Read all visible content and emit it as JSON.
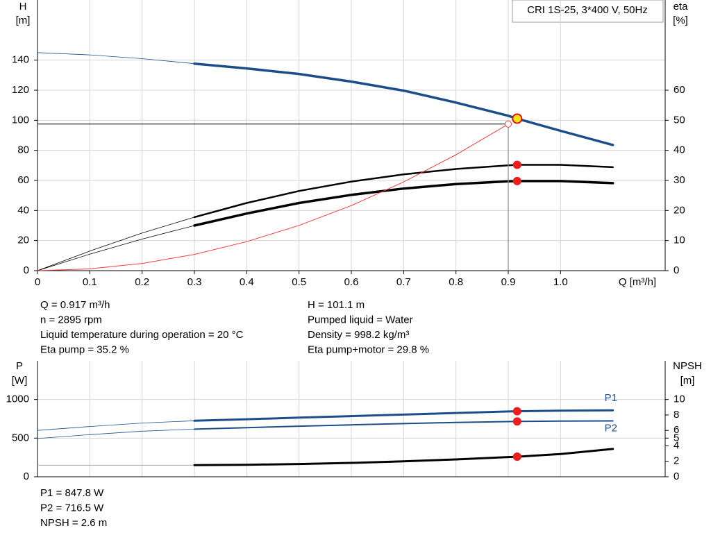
{
  "chart_data": [
    {
      "type": "line",
      "title": "CRI 1S-25, 3*400 V, 50Hz",
      "xlabel": "Q [m³/h]",
      "ylabel": [
        "H",
        "[m]"
      ],
      "y2label": [
        "eta",
        "[%]"
      ],
      "x": [
        0,
        0.1,
        0.2,
        0.3,
        0.4,
        0.5,
        0.6,
        0.7,
        0.8,
        0.9,
        0.917,
        1.0,
        1.1
      ],
      "xlim": [
        0,
        1.2
      ],
      "xticks": [
        0,
        0.1,
        0.2,
        0.3,
        0.4,
        0.5,
        0.6,
        0.7,
        0.8,
        0.9,
        {
          "value": 1.0,
          "label": "1.0"
        }
      ],
      "ylim": [
        0,
        180
      ],
      "yticks": [
        0,
        20,
        40,
        60,
        80,
        100,
        120,
        140
      ],
      "y2lim": [
        0,
        90
      ],
      "y2ticks": [
        0,
        10,
        20,
        30,
        40,
        50,
        60
      ],
      "grid": true,
      "operating_range": [
        0.3,
        1.1
      ],
      "duty_point": {
        "x": 0.917,
        "y": 101.1,
        "color": "#f5e31a"
      },
      "series": [
        {
          "color": "#1a4d89",
          "width": 3.5,
          "values": [
            145,
            143.5,
            141,
            137.7,
            134.5,
            130.8,
            125.7,
            119.7,
            111.8,
            103,
            101.1,
            93,
            83.6
          ]
        },
        {
          "color": "#000000",
          "width": 2.5,
          "axis": "y2",
          "point_color": "#ee1c1c",
          "values": [
            0,
            6.5,
            12.5,
            17.8,
            22.5,
            26.5,
            29.6,
            32.0,
            33.8,
            35.0,
            35.2,
            35.2,
            34.4
          ]
        },
        {
          "color": "#000000",
          "width": 3.5,
          "axis": "y2",
          "point_color": "#ee1c1c",
          "values": [
            0,
            5.5,
            10.5,
            15.0,
            19.0,
            22.5,
            25.2,
            27.3,
            28.8,
            29.7,
            29.8,
            29.8,
            29.1
          ]
        },
        {
          "kind": "system",
          "color": "#ee3b3b",
          "x": [
            0,
            0.1,
            0.2,
            0.3,
            0.4,
            0.5,
            0.6,
            0.7,
            0.8,
            0.9
          ],
          "values": [
            0,
            1.2,
            4.8,
            10.8,
            19.3,
            30.1,
            43.3,
            59.0,
            77.1,
            97.5
          ]
        }
      ]
    },
    {
      "type": "line",
      "ylabel": [
        "P",
        "[W]"
      ],
      "y2label": [
        "NPSH",
        "[m]"
      ],
      "x": [
        0,
        0.1,
        0.2,
        0.3,
        0.4,
        0.5,
        0.6,
        0.7,
        0.8,
        0.9,
        0.917,
        1.0,
        1.1
      ],
      "xlim": [
        0,
        1.2
      ],
      "ylim": [
        0,
        1500
      ],
      "yticks": [
        0,
        500,
        1000
      ],
      "y2lim": [
        0,
        15
      ],
      "y2ticks": [
        0,
        2,
        4,
        5,
        6,
        8,
        10
      ],
      "grid": true,
      "operating_range": [
        0.3,
        1.1
      ],
      "series": [
        {
          "name": "P1",
          "color": "#1a4d89",
          "width": 3,
          "point_color": "#ee1c1c",
          "values": [
            600,
            650,
            695,
            725,
            745,
            765,
            785,
            805,
            825,
            845,
            847.8,
            855,
            860
          ]
        },
        {
          "name": "P2",
          "color": "#1a4d89",
          "width": 2,
          "point_color": "#ee1c1c",
          "values": [
            495,
            545,
            590,
            616,
            635,
            655,
            672,
            688,
            703,
            714,
            716.5,
            720,
            723
          ]
        },
        {
          "color": "#000000",
          "thin_color": "#999999",
          "width": 3,
          "axis": "y2",
          "point_color": "#ee1c1c",
          "values": [
            1.5,
            1.5,
            1.5,
            1.5,
            1.55,
            1.65,
            1.8,
            2.0,
            2.25,
            2.55,
            2.6,
            2.95,
            3.6
          ]
        }
      ]
    }
  ],
  "readout": {
    "left": [
      "Q = 0.917 m³/h",
      "n = 2895 rpm",
      "Liquid temperature during operation = 20 °C",
      "Eta pump = 35.2 %"
    ],
    "right": [
      "H = 101.1 m",
      "Pumped liquid = Water",
      "Density = 998.2 kg/m³",
      "Eta pump+motor = 29.8 %"
    ]
  },
  "power_readout": [
    "P1 = 847.8 W",
    "P2 = 716.5 W",
    "NPSH = 2.6 m"
  ]
}
